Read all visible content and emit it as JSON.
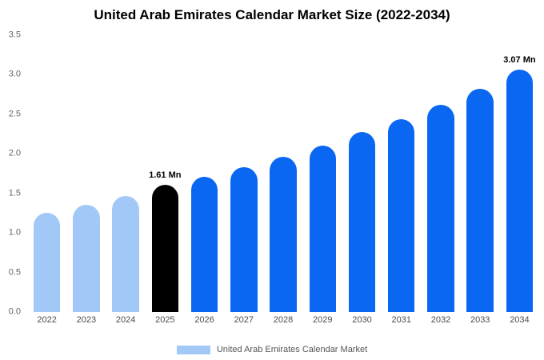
{
  "title": "United Arab Emirates Calendar Market Size (2022-2034)",
  "chart_data": {
    "type": "bar",
    "title": "United Arab Emirates Calendar Market Size (2022-2034)",
    "categories": [
      "2022",
      "2023",
      "2024",
      "2025",
      "2026",
      "2027",
      "2028",
      "2029",
      "2030",
      "2031",
      "2032",
      "2033",
      "2034"
    ],
    "values": [
      1.25,
      1.36,
      1.47,
      1.61,
      1.71,
      1.83,
      1.96,
      2.1,
      2.28,
      2.44,
      2.62,
      2.82,
      3.07
    ],
    "bar_colors": [
      "#a2c8f8",
      "#a2c8f8",
      "#a2c8f8",
      "#000000",
      "#0a67f2",
      "#0a67f2",
      "#0a67f2",
      "#0a67f2",
      "#0a67f2",
      "#0a67f2",
      "#0a67f2",
      "#0a67f2",
      "#0a67f2"
    ],
    "annotations": [
      {
        "index": 3,
        "text": "1.61 Mn"
      },
      {
        "index": 12,
        "text": "3.07 Mn"
      }
    ],
    "xlabel": "",
    "ylabel": "",
    "ylim": [
      0,
      3.5
    ],
    "yticks": [
      0,
      0.5,
      1.0,
      1.5,
      2.0,
      2.5,
      3.0,
      3.5
    ],
    "grid": false,
    "legend": {
      "label": "United Arab Emirates Calendar Market",
      "swatch_color": "#a2c8f8",
      "position": "bottom"
    }
  },
  "colors": {
    "light_blue": "#a2c8f8",
    "blue": "#0a67f2",
    "highlight_black": "#000000"
  }
}
